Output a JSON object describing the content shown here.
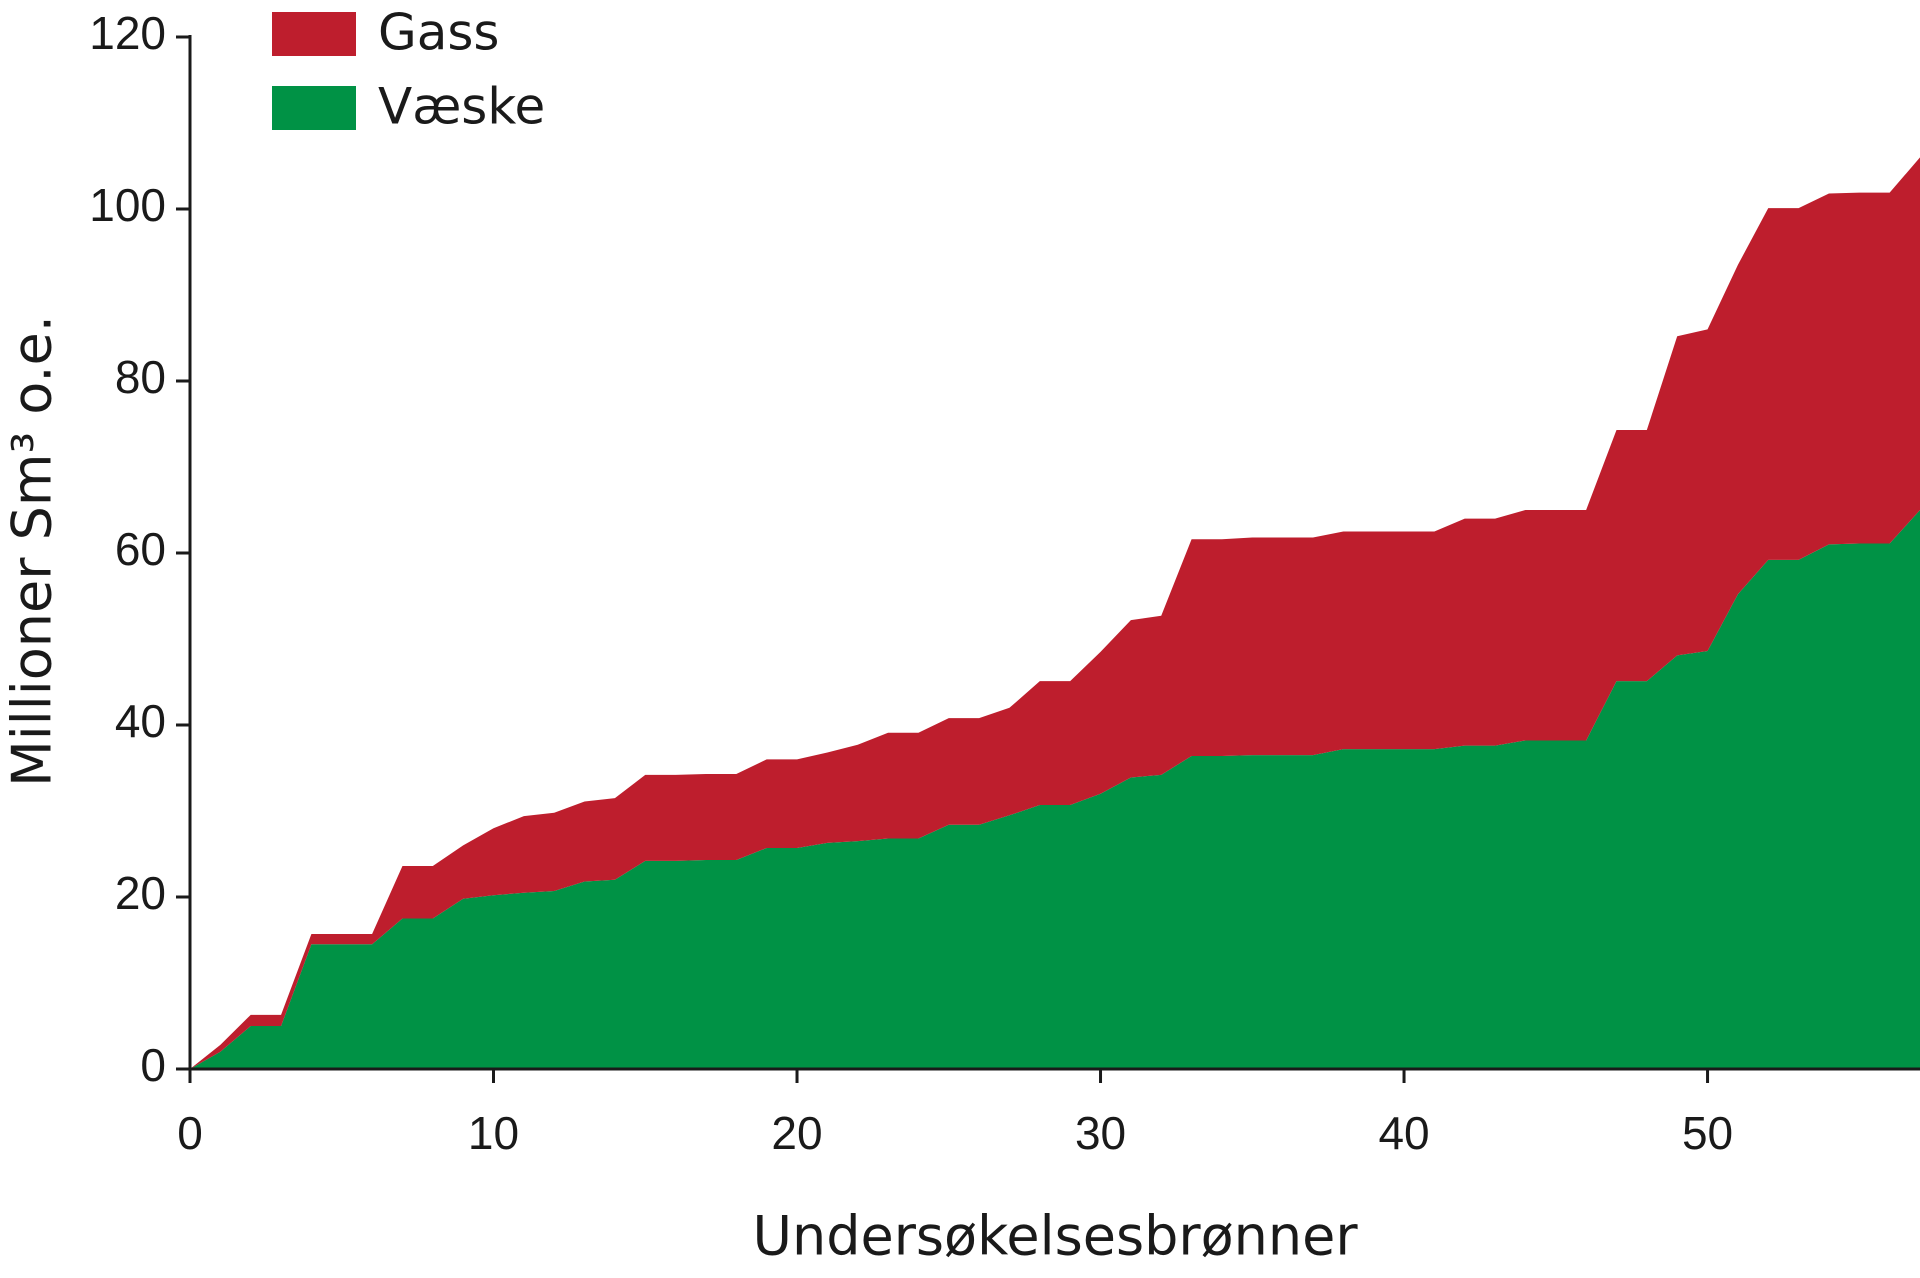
{
  "chart_data": {
    "type": "stacked-area",
    "x_label": "Undersøkelsesbrønner",
    "y_label": "Millioner Sm³ o.e.",
    "x": [
      0,
      1,
      2,
      3,
      4,
      5,
      6,
      7,
      8,
      9,
      10,
      11,
      12,
      13,
      14,
      15,
      16,
      17,
      18,
      19,
      20,
      21,
      22,
      23,
      24,
      25,
      26,
      27,
      28,
      29,
      30,
      31,
      32,
      33,
      34,
      35,
      36,
      37,
      38,
      39,
      40,
      41,
      42,
      43,
      44,
      45,
      46,
      47,
      48,
      49,
      50,
      51,
      52,
      53,
      54,
      55,
      56,
      57
    ],
    "series": [
      {
        "name": "Væske",
        "color": "#009245",
        "values": [
          0,
          2,
          5,
          5,
          14.5,
          14.5,
          14.5,
          17.5,
          17.5,
          19.8,
          20.2,
          20.5,
          20.7,
          21.8,
          22,
          24.2,
          24.2,
          24.3,
          24.3,
          25.7,
          25.7,
          26.3,
          26.5,
          26.8,
          26.8,
          28.4,
          28.4,
          29.5,
          30.7,
          30.7,
          32,
          33.9,
          34.2,
          36.4,
          36.4,
          36.5,
          36.5,
          36.5,
          37.2,
          37.2,
          37.2,
          37.2,
          37.6,
          37.6,
          38.2,
          38.2,
          38.2,
          45.1,
          45.1,
          48.1,
          48.6,
          55.2,
          59.2,
          59.2,
          61,
          61.1,
          61.1,
          65
        ]
      },
      {
        "name": "Gass",
        "color": "#be1e2d",
        "values": [
          0,
          0.8,
          1.3,
          1.3,
          1.2,
          1.2,
          1.2,
          6.1,
          6.1,
          6.2,
          7.8,
          8.9,
          9.1,
          9.3,
          9.5,
          10,
          10,
          10,
          10,
          10.3,
          10.3,
          10.5,
          11.2,
          12.3,
          12.3,
          12.4,
          12.4,
          12.5,
          14.4,
          14.4,
          16.5,
          18.3,
          18.5,
          25.2,
          25.2,
          25.3,
          25.3,
          25.3,
          25.3,
          25.3,
          25.3,
          25.3,
          26.4,
          26.4,
          26.8,
          26.8,
          26.8,
          29.2,
          29.2,
          37.1,
          37.4,
          38.3,
          40.9,
          40.9,
          40.8,
          40.8,
          40.8,
          41
        ]
      }
    ],
    "xlim": [
      0,
      57
    ],
    "xticks": [
      0,
      10,
      20,
      30,
      40,
      50
    ],
    "ylim": [
      0,
      120
    ],
    "yticks": [
      0,
      20,
      40,
      60,
      80,
      100,
      120
    ],
    "grid": false,
    "legend": "top-left"
  }
}
